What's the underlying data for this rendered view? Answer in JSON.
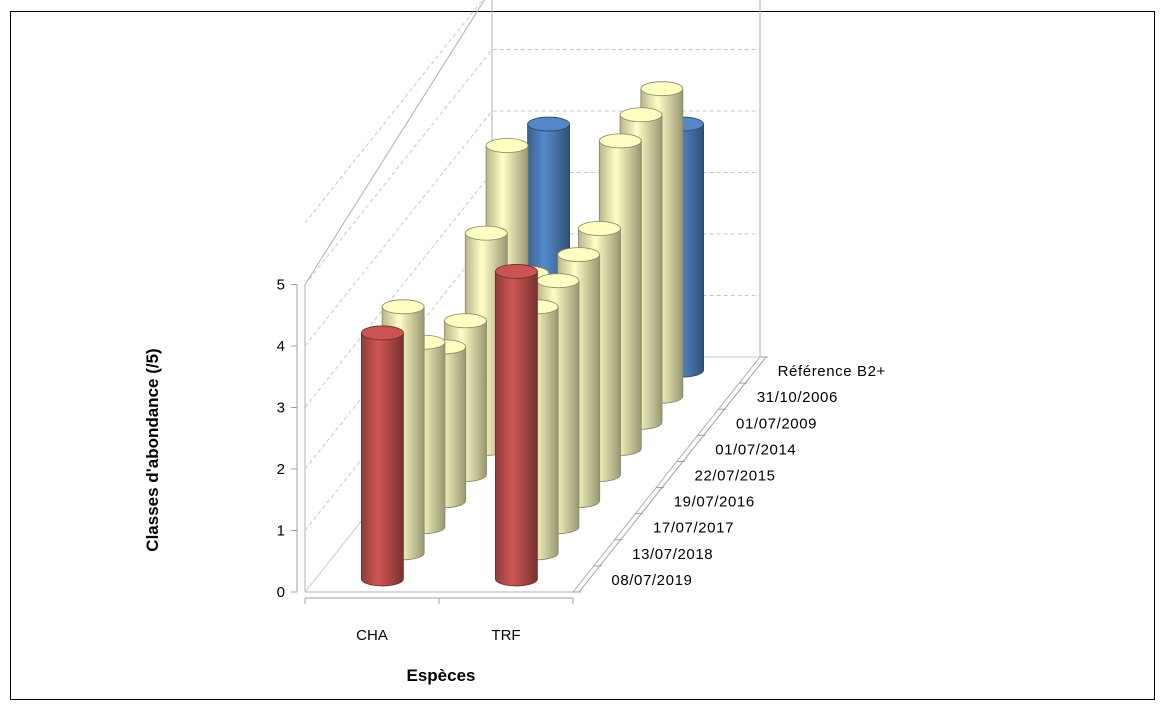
{
  "chart_data": {
    "type": "bar",
    "style": "3d-cylinder",
    "categories": [
      "CHA",
      "TRF"
    ],
    "xlabel": "Espèces",
    "ylabel": "Classes d'abondance  (/5)",
    "ylim": [
      0,
      5
    ],
    "yticks": [
      "0",
      "1",
      "2",
      "3",
      "4",
      "5"
    ],
    "grid": true,
    "series": [
      {
        "name": "08/07/2019",
        "color": "#c0504d",
        "values": [
          4.0,
          5.0
        ]
      },
      {
        "name": "13/07/2018",
        "color": "#f7f3b8",
        "values": [
          4.0,
          4.0
        ]
      },
      {
        "name": "17/07/2017",
        "color": "#f7f3b8",
        "values": [
          3.0,
          4.0
        ]
      },
      {
        "name": "19/07/2016",
        "color": "#f7f3b8",
        "values": [
          2.5,
          4.0
        ]
      },
      {
        "name": "22/07/2015",
        "color": "#f7f3b8",
        "values": [
          2.5,
          4.0
        ]
      },
      {
        "name": "01/07/2014",
        "color": "#f7f3b8",
        "values": [
          3.5,
          5.0
        ]
      },
      {
        "name": "01/07/2009",
        "color": "#f7f3b8",
        "values": [
          4.5,
          5.0
        ]
      },
      {
        "name": "31/10/2006",
        "color": "#f7f3b8",
        "values": [
          2.0,
          5.0
        ]
      },
      {
        "name": "Référence B2+",
        "color": "#4f81bd",
        "values": [
          4.0,
          4.0
        ]
      }
    ]
  }
}
